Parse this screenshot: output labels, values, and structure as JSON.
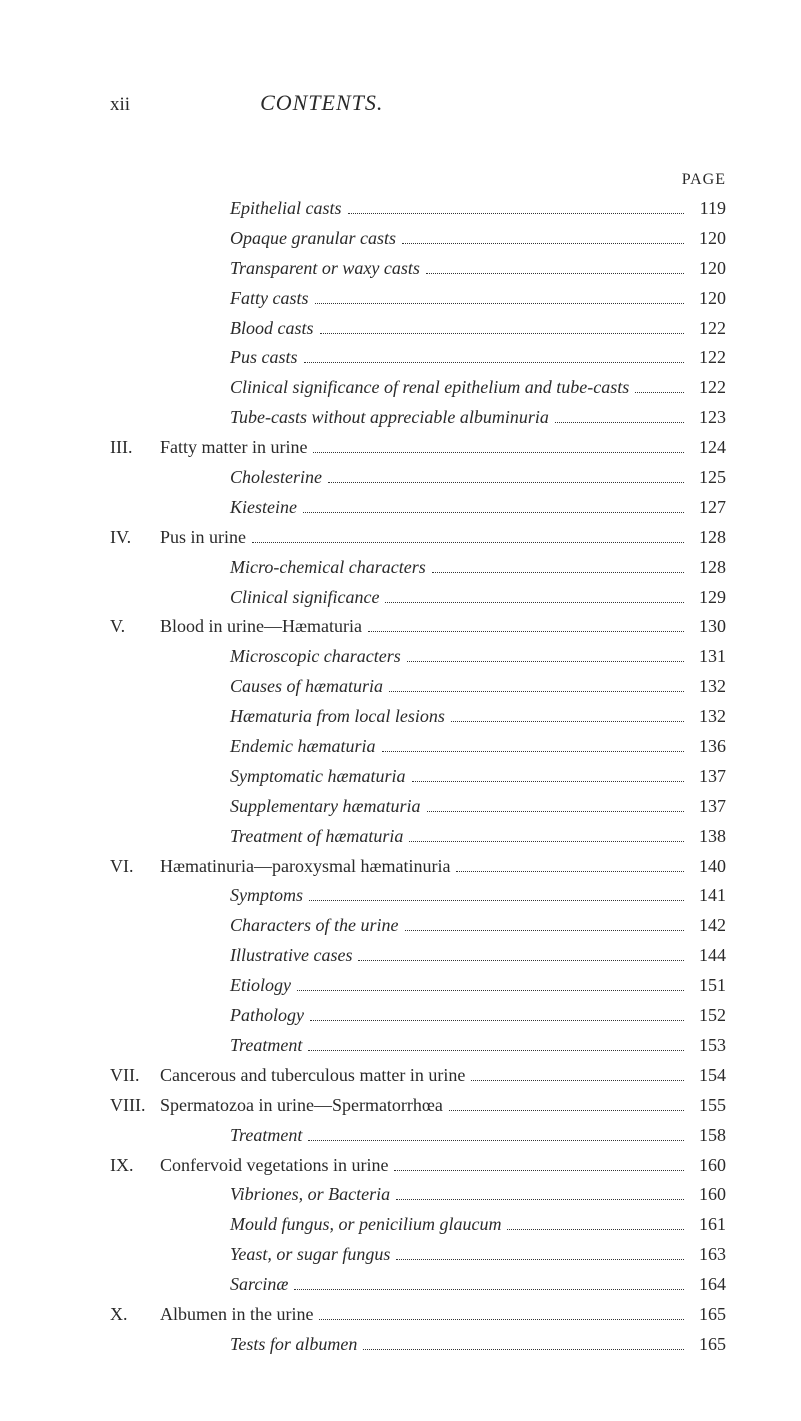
{
  "page_roman": "xii",
  "heading": "CONTENTS.",
  "page_label": "PAGE",
  "entries": [
    {
      "roman": "",
      "indent": 1,
      "label": "Epithelial casts",
      "italic": true,
      "page": "119"
    },
    {
      "roman": "",
      "indent": 1,
      "label": "Opaque granular casts",
      "italic": true,
      "page": "120"
    },
    {
      "roman": "",
      "indent": 1,
      "label": "Transparent or waxy casts",
      "italic": true,
      "page": "120"
    },
    {
      "roman": "",
      "indent": 1,
      "label": "Fatty casts",
      "italic": true,
      "page": "120"
    },
    {
      "roman": "",
      "indent": 1,
      "label": "Blood casts",
      "italic": true,
      "page": "122"
    },
    {
      "roman": "",
      "indent": 1,
      "label": "Pus casts",
      "italic": true,
      "page": "122"
    },
    {
      "roman": "",
      "indent": 1,
      "label": "Clinical significance of renal epithelium and tube-casts",
      "italic": true,
      "page": "122"
    },
    {
      "roman": "",
      "indent": 1,
      "label": "Tube-casts without appreciable albuminuria",
      "italic": true,
      "page": "123"
    },
    {
      "roman": "III.",
      "indent": 0,
      "label": "Fatty matter in urine",
      "italic": false,
      "page": "124"
    },
    {
      "roman": "",
      "indent": 1,
      "label": "Cholesterine",
      "italic": true,
      "page": "125"
    },
    {
      "roman": "",
      "indent": 1,
      "label": "Kiesteine",
      "italic": true,
      "page": "127"
    },
    {
      "roman": "IV.",
      "indent": 0,
      "label": "Pus in urine",
      "italic": false,
      "page": "128"
    },
    {
      "roman": "",
      "indent": 1,
      "label": "Micro-chemical characters",
      "italic": true,
      "page": "128"
    },
    {
      "roman": "",
      "indent": 1,
      "label": "Clinical significance",
      "italic": true,
      "page": "129"
    },
    {
      "roman": "V.",
      "indent": 0,
      "label": "Blood in urine—Hæmaturia",
      "italic": false,
      "page": "130"
    },
    {
      "roman": "",
      "indent": 1,
      "label": "Microscopic characters",
      "italic": true,
      "page": "131"
    },
    {
      "roman": "",
      "indent": 1,
      "label": "Causes of hæmaturia",
      "italic": true,
      "page": "132"
    },
    {
      "roman": "",
      "indent": 1,
      "label": "Hæmaturia from local lesions",
      "italic": true,
      "page": "132"
    },
    {
      "roman": "",
      "indent": 1,
      "label": "Endemic hæmaturia",
      "italic": true,
      "page": "136"
    },
    {
      "roman": "",
      "indent": 1,
      "label": "Symptomatic hæmaturia",
      "italic": true,
      "page": "137"
    },
    {
      "roman": "",
      "indent": 1,
      "label": "Supplementary hæmaturia",
      "italic": true,
      "page": "137"
    },
    {
      "roman": "",
      "indent": 1,
      "label": "Treatment of hæmaturia",
      "italic": true,
      "page": "138"
    },
    {
      "roman": "VI.",
      "indent": 0,
      "label": "Hæmatinuria—paroxysmal hæmatinuria",
      "italic": false,
      "page": "140"
    },
    {
      "roman": "",
      "indent": 1,
      "label": "Symptoms",
      "italic": true,
      "page": "141"
    },
    {
      "roman": "",
      "indent": 1,
      "label": "Characters of the urine",
      "italic": true,
      "page": "142"
    },
    {
      "roman": "",
      "indent": 1,
      "label": "Illustrative cases",
      "italic": true,
      "page": "144"
    },
    {
      "roman": "",
      "indent": 1,
      "label": "Etiology",
      "italic": true,
      "page": "151"
    },
    {
      "roman": "",
      "indent": 1,
      "label": "Pathology",
      "italic": true,
      "page": "152"
    },
    {
      "roman": "",
      "indent": 1,
      "label": "Treatment",
      "italic": true,
      "page": "153"
    },
    {
      "roman": "VII.",
      "indent": 0,
      "label": "Cancerous and tuberculous matter in urine",
      "italic": false,
      "page": "154"
    },
    {
      "roman": "VIII.",
      "indent": 0,
      "label": "Spermatozoa in urine—Spermatorrhœa",
      "italic": false,
      "page": "155"
    },
    {
      "roman": "",
      "indent": 1,
      "label": "Treatment",
      "italic": true,
      "page": "158"
    },
    {
      "roman": "IX.",
      "indent": 0,
      "label": "Confervoid vegetations in urine",
      "italic": false,
      "page": "160"
    },
    {
      "roman": "",
      "indent": 1,
      "label": "Vibriones, or Bacteria",
      "italic": true,
      "page": "160"
    },
    {
      "roman": "",
      "indent": 1,
      "label": "Mould fungus, or penicilium glaucum",
      "italic": true,
      "page": "161"
    },
    {
      "roman": "",
      "indent": 1,
      "label": "Yeast, or sugar fungus",
      "italic": true,
      "page": "163"
    },
    {
      "roman": "",
      "indent": 1,
      "label": "Sarcinæ",
      "italic": true,
      "page": "164"
    },
    {
      "roman": "X.",
      "indent": 0,
      "label": "Albumen in the urine",
      "italic": false,
      "page": "165"
    },
    {
      "roman": "",
      "indent": 1,
      "label": "Tests for albumen",
      "italic": true,
      "page": "165"
    }
  ]
}
